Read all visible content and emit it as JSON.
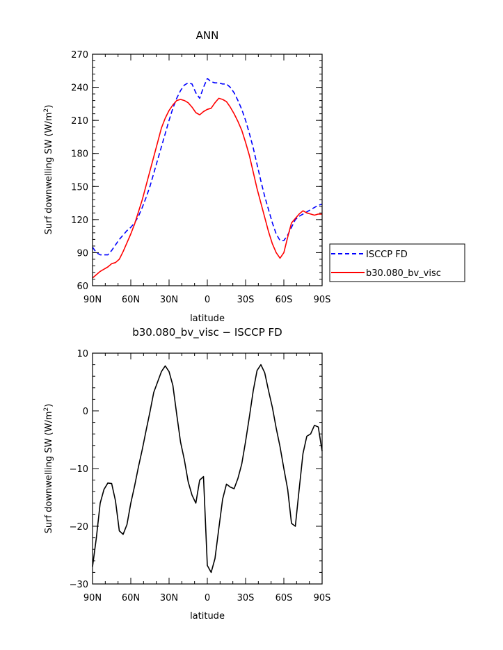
{
  "chart_data": [
    {
      "type": "line",
      "title": "ANN",
      "xlabel": "latitude",
      "ylabel": "Surf downwelling SW (W/m²)",
      "ylabel_main": "Surf downwelling SW (W/m",
      "ylabel_sup": "2",
      "ylabel_close": ")",
      "xlim": [
        -90,
        90
      ],
      "ylim": [
        60,
        270
      ],
      "xticks": [
        -90,
        -60,
        -30,
        0,
        30,
        60,
        90
      ],
      "xtick_labels": [
        "90N",
        "60N",
        "30N",
        "0",
        "30S",
        "60S",
        "90S"
      ],
      "yticks": [
        60,
        90,
        120,
        150,
        180,
        210,
        240,
        270
      ],
      "ytick_labels": [
        "60",
        "90",
        "120",
        "150",
        "180",
        "210",
        "240",
        "270"
      ],
      "grid": false,
      "legend": "right",
      "series": [
        {
          "name": "ISCCP FD",
          "color": "#0000ff",
          "dash": "dashed",
          "x": [
            -90,
            -87,
            -84,
            -81,
            -78,
            -75,
            -72,
            -69,
            -66,
            -63,
            -60,
            -57,
            -54,
            -51,
            -48,
            -45,
            -42,
            -39,
            -36,
            -33,
            -30,
            -27,
            -24,
            -21,
            -18,
            -15,
            -12,
            -9,
            -6,
            -3,
            0,
            3,
            6,
            9,
            12,
            15,
            18,
            21,
            24,
            27,
            30,
            33,
            36,
            39,
            42,
            45,
            48,
            51,
            54,
            57,
            60,
            63,
            66,
            69,
            72,
            75,
            78,
            81,
            84,
            87,
            90
          ],
          "y": [
            95,
            90,
            88,
            88,
            88,
            92,
            97,
            102,
            106,
            110,
            113,
            117,
            123,
            131,
            140,
            150,
            162,
            174,
            186,
            198,
            210,
            221,
            230,
            237,
            242,
            244,
            243,
            235,
            230,
            240,
            248,
            245,
            244,
            244,
            243,
            243,
            240,
            235,
            228,
            220,
            210,
            198,
            185,
            170,
            155,
            141,
            129,
            117,
            107,
            101,
            101,
            106,
            113,
            120,
            123,
            125,
            127,
            129,
            131,
            133,
            134
          ]
        },
        {
          "name": "b30.080_bv_visc",
          "color": "#ff0000",
          "dash": "solid",
          "x": [
            -90,
            -87,
            -84,
            -81,
            -78,
            -75,
            -72,
            -69,
            -66,
            -63,
            -60,
            -57,
            -54,
            -51,
            -48,
            -45,
            -42,
            -39,
            -36,
            -33,
            -30,
            -27,
            -24,
            -21,
            -18,
            -15,
            -12,
            -9,
            -6,
            -3,
            0,
            3,
            6,
            9,
            12,
            15,
            18,
            21,
            24,
            27,
            30,
            33,
            36,
            39,
            42,
            45,
            48,
            51,
            54,
            57,
            60,
            63,
            66,
            69,
            72,
            75,
            78,
            81,
            84,
            87,
            90
          ],
          "y": [
            67,
            70,
            73,
            75,
            77,
            80,
            81,
            84,
            91,
            99,
            107,
            116,
            127,
            138,
            151,
            164,
            177,
            190,
            203,
            212,
            219,
            224,
            228,
            229,
            228,
            226,
            222,
            217,
            215,
            218,
            220,
            221,
            226,
            230,
            229,
            227,
            222,
            216,
            209,
            201,
            190,
            178,
            163,
            148,
            135,
            122,
            109,
            98,
            90,
            85,
            90,
            104,
            117,
            121,
            125,
            128,
            126,
            125,
            124,
            125,
            125
          ]
        }
      ]
    },
    {
      "type": "line",
      "title": "b30.080_bv_visc − ISCCP FD",
      "xlabel": "latitude",
      "ylabel": "Surf downwelling SW (W/m²)",
      "ylabel_main": "Surf downwelling SW (W/m",
      "ylabel_sup": "2",
      "ylabel_close": ")",
      "xlim": [
        -90,
        90
      ],
      "ylim": [
        -30,
        10
      ],
      "xticks": [
        -90,
        -60,
        -30,
        0,
        30,
        60,
        90
      ],
      "xtick_labels": [
        "90N",
        "60N",
        "30N",
        "0",
        "30S",
        "60S",
        "90S"
      ],
      "yticks": [
        -30,
        -20,
        -10,
        0,
        10
      ],
      "ytick_labels": [
        "−30",
        "−20",
        "−10",
        "0",
        "10"
      ],
      "grid": false,
      "series": [
        {
          "color": "#000000",
          "dash": "solid",
          "x": [
            -90,
            -87,
            -84,
            -81,
            -78,
            -75,
            -72,
            -69,
            -66,
            -63,
            -60,
            -57,
            -54,
            -51,
            -48,
            -45,
            -42,
            -39,
            -36,
            -33,
            -30,
            -27,
            -24,
            -21,
            -18,
            -15,
            -12,
            -9,
            -6,
            -3,
            0,
            3,
            6,
            9,
            12,
            15,
            18,
            21,
            24,
            27,
            30,
            33,
            36,
            39,
            42,
            45,
            48,
            51,
            54,
            57,
            60,
            63,
            66,
            69,
            72,
            75,
            78,
            81,
            84,
            87,
            90
          ],
          "y": [
            -27,
            -22,
            -16,
            -13.6,
            -12.5,
            -12.6,
            -15.6,
            -20.8,
            -21.4,
            -19.7,
            -16,
            -13,
            -9.7,
            -6.7,
            -3.4,
            -0.2,
            3.2,
            5,
            6.8,
            7.8,
            6.8,
            4.4,
            -0.6,
            -5.4,
            -8.5,
            -12.3,
            -14.6,
            -16,
            -12,
            -11.4,
            -26.8,
            -28,
            -25.6,
            -20.4,
            -15.3,
            -12.7,
            -13.2,
            -13.5,
            -11.7,
            -9.2,
            -5.3,
            -1,
            3.5,
            7,
            8,
            6.6,
            3.5,
            0.6,
            -3,
            -6.2,
            -10,
            -13.6,
            -19.5,
            -20,
            -13.6,
            -7.4,
            -4.4,
            -4,
            -2.5,
            -2.8,
            -7
          ]
        }
      ]
    }
  ]
}
